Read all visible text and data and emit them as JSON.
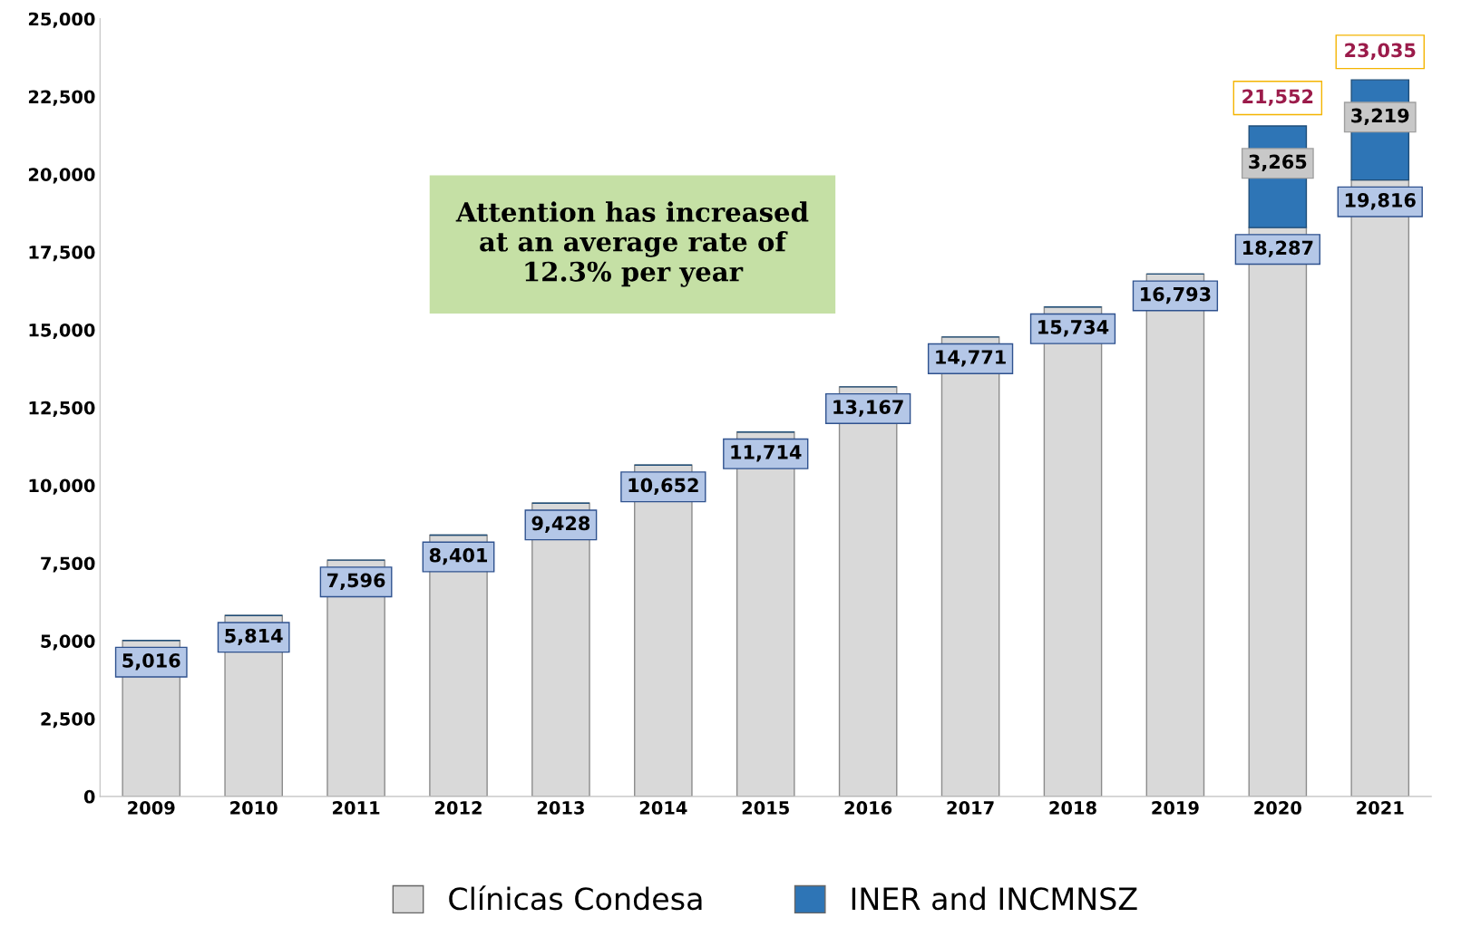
{
  "chart_data": {
    "type": "bar",
    "stacked": true,
    "categories": [
      "2009",
      "2010",
      "2011",
      "2012",
      "2013",
      "2014",
      "2015",
      "2016",
      "2017",
      "2018",
      "2019",
      "2020",
      "2021"
    ],
    "series": [
      {
        "name": "Clínicas Condesa",
        "color": "#d9d9d9",
        "values": [
          5016,
          5814,
          7596,
          8401,
          9428,
          10652,
          11714,
          13167,
          14771,
          15734,
          16793,
          18287,
          19816
        ],
        "value_labels": [
          "5,016",
          "5,814",
          "7,596",
          "8,401",
          "9,428",
          "10,652",
          "11,714",
          "13,167",
          "14,771",
          "15,734",
          "16,793",
          "18,287",
          "19,816"
        ]
      },
      {
        "name": "INER and INCMNSZ",
        "color": "#2e75b6",
        "values": [
          null,
          null,
          null,
          null,
          null,
          null,
          null,
          null,
          null,
          null,
          null,
          3265,
          3219
        ],
        "value_labels": [
          null,
          null,
          null,
          null,
          null,
          null,
          null,
          null,
          null,
          null,
          null,
          "3,265",
          "3,219"
        ]
      }
    ],
    "totals": [
      null,
      null,
      null,
      null,
      null,
      null,
      null,
      null,
      null,
      null,
      null,
      "21,552",
      "23,035"
    ],
    "ylim": [
      0,
      25000
    ],
    "yticks": [
      0,
      {
        "value": 2500,
        "label": "2,500"
      },
      {
        "value": 5000,
        "label": "5,000"
      },
      {
        "value": 7500,
        "label": "7,500"
      },
      {
        "value": 10000,
        "label": "10,000"
      },
      {
        "value": 12500,
        "label": "12,500"
      },
      {
        "value": 15000,
        "label": "15,000"
      },
      {
        "value": 17500,
        "label": "17,500"
      },
      {
        "value": 20000,
        "label": "20,000"
      },
      {
        "value": 22500,
        "label": "22,500"
      },
      {
        "value": 25000,
        "label": "25,000"
      }
    ],
    "grid": false,
    "legend": "bottom",
    "annotations": [
      "Attention has increased at an average rate of 12.3% per year"
    ]
  }
}
